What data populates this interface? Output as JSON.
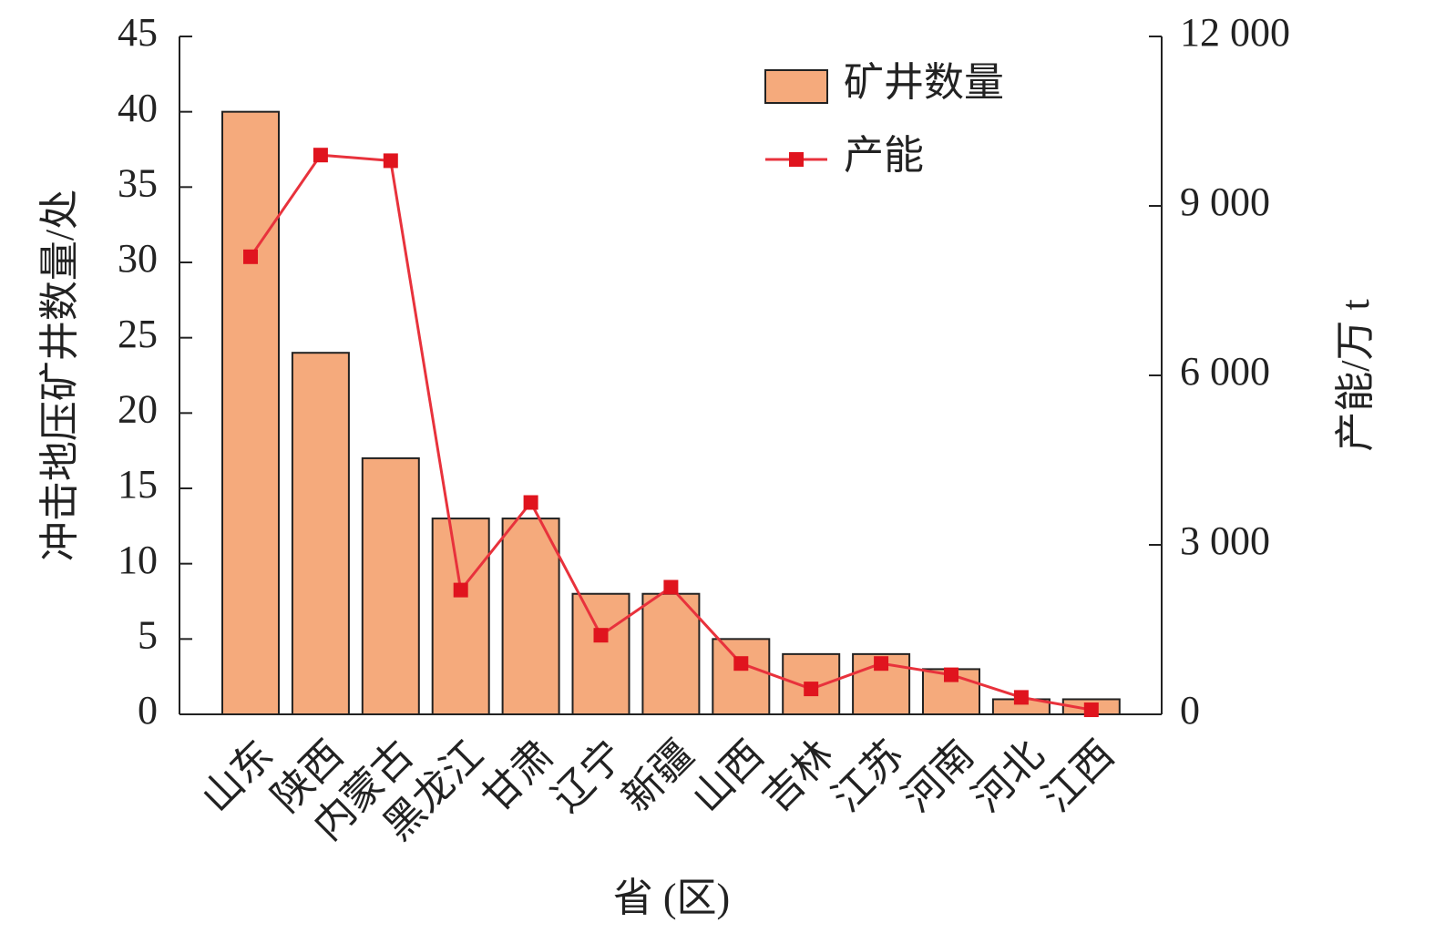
{
  "chart_data": {
    "type": "bar-line",
    "x_label": "省 (区)",
    "y_label": "冲击地压矿井数量/处",
    "y2_label": "产能/万 t",
    "categories": [
      "山东",
      "陕西",
      "内蒙古",
      "黑龙江",
      "甘肃",
      "辽宁",
      "新疆",
      "山西",
      "吉林",
      "江苏",
      "河南",
      "河北",
      "江西"
    ],
    "series": [
      {
        "name": "矿井数量",
        "type": "bar",
        "color": "#f5aa7c",
        "values": [
          40,
          24,
          17,
          13,
          13,
          8,
          8,
          5,
          4,
          4,
          3,
          1,
          1
        ]
      },
      {
        "name": "产能",
        "type": "line",
        "axis": "y2",
        "color": "#e8323c",
        "values": [
          8100,
          9900,
          9800,
          2200,
          3750,
          1400,
          2250,
          900,
          450,
          900,
          700,
          300,
          80
        ]
      }
    ],
    "ylim": [
      0,
      45
    ],
    "yticks": [
      0,
      5,
      10,
      15,
      20,
      25,
      30,
      35,
      40,
      45
    ],
    "y2lim": [
      0,
      12000
    ],
    "y2ticks": [
      0,
      {
        "value": 3000,
        "label": "3 000"
      },
      {
        "value": 6000,
        "label": "6 000"
      },
      {
        "value": 9000,
        "label": "9 000"
      },
      {
        "value": 12000,
        "label": "12 000"
      }
    ],
    "legend": "upper-right"
  }
}
